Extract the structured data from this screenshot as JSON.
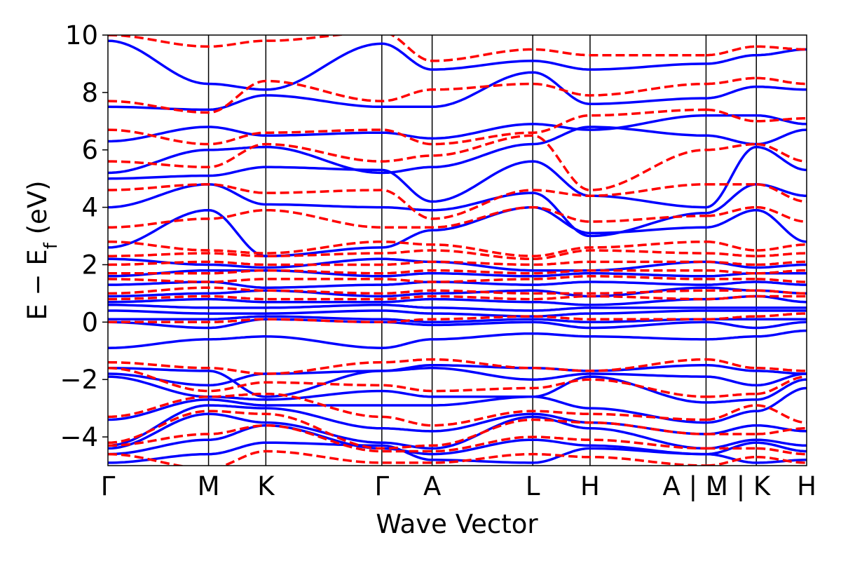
{
  "chart_data": {
    "type": "line",
    "xlabel": "Wave Vector",
    "ylabel_main": "E − E",
    "ylabel_sub": "f",
    "ylabel_unit": " (eV)",
    "ylim": [
      -5,
      10
    ],
    "yticks": [
      -4,
      -2,
      0,
      2,
      4,
      6,
      8,
      10
    ],
    "ytick_labels": [
      "−4",
      "−2",
      "0",
      "2",
      "4",
      "6",
      "8",
      "10"
    ],
    "x_range": [
      0,
      1
    ],
    "high_symmetry_points": [
      {
        "x": 0.0,
        "label": "Γ"
      },
      {
        "x": 0.144,
        "label": "M"
      },
      {
        "x": 0.226,
        "label": "K"
      },
      {
        "x": 0.392,
        "label": "Γ"
      },
      {
        "x": 0.464,
        "label": "A"
      },
      {
        "x": 0.608,
        "label": "L"
      },
      {
        "x": 0.69,
        "label": "H"
      },
      {
        "x": 0.856,
        "label": "A | L"
      },
      {
        "x": 0.928,
        "label": "M | K"
      },
      {
        "x": 1.0,
        "label": "H"
      }
    ],
    "segment_breaks": [
      0.856,
      0.928
    ],
    "series": [
      {
        "style": "solid",
        "color": "#0000ff",
        "bands": [
          [
            -4.9,
            -4.6,
            -4.2,
            -4.3,
            -4.8,
            -4.9,
            -4.4,
            -4.6,
            -4.9,
            -4.8
          ],
          [
            -4.6,
            -4.1,
            -3.6,
            -4.4,
            -4.6,
            -4.1,
            -4.3,
            -4.6,
            -4.2,
            -4.5
          ],
          [
            -4.4,
            -3.2,
            -3.5,
            -4.2,
            -4.4,
            -3.3,
            -3.7,
            -4.4,
            -4.1,
            -4.3
          ],
          [
            -4.3,
            -2.9,
            -3.0,
            -3.7,
            -3.8,
            -3.2,
            -3.5,
            -3.9,
            -3.6,
            -3.8
          ],
          [
            -3.4,
            -2.7,
            -2.9,
            -2.9,
            -2.9,
            -2.6,
            -3.0,
            -3.5,
            -3.1,
            -2.3
          ],
          [
            -1.9,
            -2.6,
            -2.7,
            -2.4,
            -2.6,
            -2.6,
            -1.9,
            -2.8,
            -2.7,
            -2.0
          ],
          [
            -1.8,
            -2.2,
            -1.8,
            -1.7,
            -1.6,
            -2.0,
            -1.8,
            -1.9,
            -2.2,
            -1.8
          ],
          [
            -1.6,
            -1.7,
            -2.6,
            -1.7,
            -1.5,
            -1.6,
            -1.7,
            -1.5,
            -1.7,
            -1.8
          ],
          [
            -0.9,
            -0.6,
            -0.5,
            -0.9,
            -0.6,
            -0.4,
            -0.5,
            -0.6,
            -0.5,
            -0.3
          ],
          [
            0.0,
            -0.2,
            0.1,
            0.0,
            -0.1,
            0.0,
            -0.2,
            0.0,
            -0.2,
            0.0
          ],
          [
            0.1,
            0.1,
            0.2,
            0.1,
            0.0,
            0.1,
            0.0,
            0.1,
            0.1,
            0.1
          ],
          [
            0.4,
            0.3,
            0.3,
            0.4,
            0.3,
            0.2,
            0.3,
            0.4,
            0.4,
            0.4
          ],
          [
            0.6,
            0.5,
            0.5,
            0.6,
            0.5,
            0.4,
            0.5,
            0.5,
            0.5,
            0.5
          ],
          [
            0.7,
            0.8,
            0.7,
            0.7,
            0.8,
            0.7,
            0.6,
            0.8,
            0.9,
            0.7
          ],
          [
            0.9,
            1.0,
            1.1,
            0.9,
            1.0,
            1.1,
            0.9,
            1.2,
            1.1,
            1.0
          ],
          [
            1.3,
            1.4,
            1.2,
            1.3,
            1.4,
            1.3,
            1.4,
            1.3,
            1.4,
            1.3
          ],
          [
            1.6,
            1.8,
            1.8,
            1.6,
            1.7,
            1.6,
            1.7,
            1.6,
            1.7,
            1.7
          ],
          [
            2.2,
            2.0,
            1.9,
            2.2,
            2.1,
            1.8,
            1.8,
            2.1,
            1.9,
            2.0
          ],
          [
            2.6,
            3.9,
            2.3,
            2.6,
            3.2,
            4.0,
            3.1,
            3.3,
            3.9,
            2.8
          ],
          [
            4.0,
            4.8,
            4.1,
            4.0,
            3.9,
            4.5,
            3.0,
            3.8,
            4.8,
            4.4
          ],
          [
            5.0,
            5.1,
            5.4,
            5.3,
            4.2,
            5.6,
            4.4,
            4.0,
            6.1,
            5.3
          ],
          [
            5.2,
            6.0,
            6.1,
            5.2,
            5.4,
            6.2,
            6.8,
            6.5,
            6.2,
            6.7
          ],
          [
            6.3,
            6.8,
            6.5,
            6.6,
            6.4,
            6.9,
            6.7,
            7.2,
            7.2,
            6.9
          ],
          [
            7.5,
            7.4,
            7.9,
            7.5,
            7.5,
            8.7,
            7.6,
            7.8,
            8.2,
            8.1
          ],
          [
            9.8,
            8.3,
            8.1,
            9.7,
            8.8,
            9.1,
            8.8,
            9.0,
            9.3,
            9.5
          ]
        ]
      },
      {
        "style": "dashed",
        "color": "#ff0000",
        "bands": [
          [
            -4.6,
            -5.1,
            -4.5,
            -4.9,
            -4.9,
            -4.6,
            -4.7,
            -5.0,
            -4.7,
            -4.9
          ],
          [
            -4.3,
            -3.9,
            -3.6,
            -4.5,
            -4.5,
            -4.0,
            -4.1,
            -4.4,
            -4.4,
            -4.6
          ],
          [
            -4.2,
            -3.1,
            -3.2,
            -4.4,
            -4.3,
            -3.4,
            -3.5,
            -3.9,
            -3.9,
            -3.7
          ],
          [
            -3.3,
            -2.6,
            -2.5,
            -3.3,
            -3.6,
            -3.1,
            -3.2,
            -3.4,
            -2.9,
            -3.5
          ],
          [
            -1.6,
            -2.4,
            -2.1,
            -2.2,
            -2.4,
            -2.3,
            -2.0,
            -2.6,
            -2.5,
            -1.9
          ],
          [
            -1.4,
            -1.6,
            -1.8,
            -1.4,
            -1.3,
            -1.6,
            -1.7,
            -1.3,
            -1.6,
            -1.7
          ],
          [
            0.0,
            0.0,
            0.1,
            0.0,
            0.1,
            0.2,
            0.1,
            0.1,
            0.2,
            0.3
          ],
          [
            0.8,
            0.9,
            0.8,
            0.8,
            0.9,
            0.8,
            0.9,
            0.8,
            0.9,
            0.9
          ],
          [
            1.0,
            1.2,
            1.1,
            1.0,
            1.1,
            1.0,
            1.0,
            1.1,
            1.1,
            1.0
          ],
          [
            1.5,
            1.4,
            1.5,
            1.5,
            1.4,
            1.5,
            1.6,
            1.5,
            1.5,
            1.4
          ],
          [
            1.7,
            1.7,
            1.8,
            1.7,
            1.8,
            1.7,
            1.8,
            1.8,
            1.7,
            1.8
          ],
          [
            2.0,
            2.1,
            2.0,
            2.0,
            2.1,
            2.0,
            2.1,
            2.1,
            2.0,
            2.1
          ],
          [
            2.3,
            2.4,
            2.3,
            2.4,
            2.5,
            2.2,
            2.5,
            2.4,
            2.3,
            2.4
          ],
          [
            2.8,
            2.5,
            2.4,
            2.8,
            2.7,
            2.3,
            2.6,
            2.8,
            2.5,
            2.7
          ],
          [
            3.3,
            3.6,
            3.9,
            3.3,
            3.3,
            4.0,
            3.5,
            3.7,
            4.0,
            3.5
          ],
          [
            4.6,
            4.8,
            4.5,
            4.6,
            3.6,
            4.6,
            4.4,
            4.8,
            4.8,
            4.2
          ],
          [
            5.6,
            5.4,
            6.2,
            5.6,
            5.8,
            6.5,
            4.6,
            6.0,
            6.2,
            5.6
          ],
          [
            6.7,
            6.2,
            6.6,
            6.7,
            6.2,
            6.6,
            7.2,
            7.4,
            7.0,
            7.1
          ],
          [
            7.7,
            7.3,
            8.4,
            7.7,
            8.1,
            8.3,
            7.9,
            8.3,
            8.5,
            8.3
          ],
          [
            10.0,
            9.6,
            9.8,
            10.1,
            9.1,
            9.5,
            9.3,
            9.3,
            9.6,
            9.5
          ]
        ]
      }
    ]
  }
}
